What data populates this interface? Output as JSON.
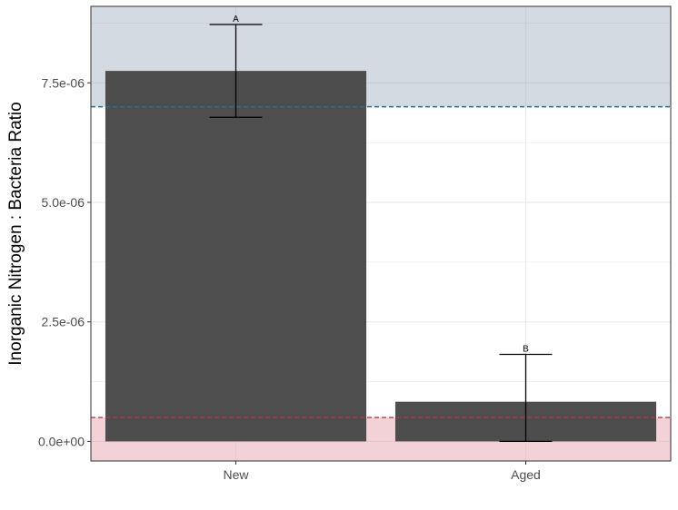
{
  "chart_data": {
    "type": "bar",
    "categories": [
      "New",
      "Aged"
    ],
    "values": [
      7.75e-06,
      8.3e-07
    ],
    "error_bars": [
      {
        "lower": 6.78e-06,
        "upper": 8.72e-06
      },
      {
        "lower": 0.0,
        "upper": 1.82e-06
      }
    ],
    "significance_labels": [
      "A",
      "B"
    ],
    "xlabel": "",
    "ylabel": "Inorganic Nitrogen : Bacteria Ratio",
    "ylim": [
      -4.1e-07,
      9.1e-06
    ],
    "yticks": [
      0,
      2.5e-06,
      5e-06,
      7.5e-06
    ],
    "ytick_labels": [
      "0.0e+00",
      "2.5e-06",
      "5.0e-06",
      "7.5e-06"
    ],
    "reference_lines": [
      {
        "value": 7e-06,
        "color": "#2c6e8f",
        "dash": "dashed",
        "band": "above",
        "band_color": "#8c9db3"
      },
      {
        "value": 5e-07,
        "color": "#b03a48",
        "dash": "dashed",
        "band": "below",
        "band_color": "#e8a5b0"
      }
    ],
    "grid": true,
    "legend": "none",
    "colors": {
      "bar": "#474747",
      "error_bar": "#000000",
      "grid": "#ebebeb",
      "panel_border": "#333333"
    }
  }
}
